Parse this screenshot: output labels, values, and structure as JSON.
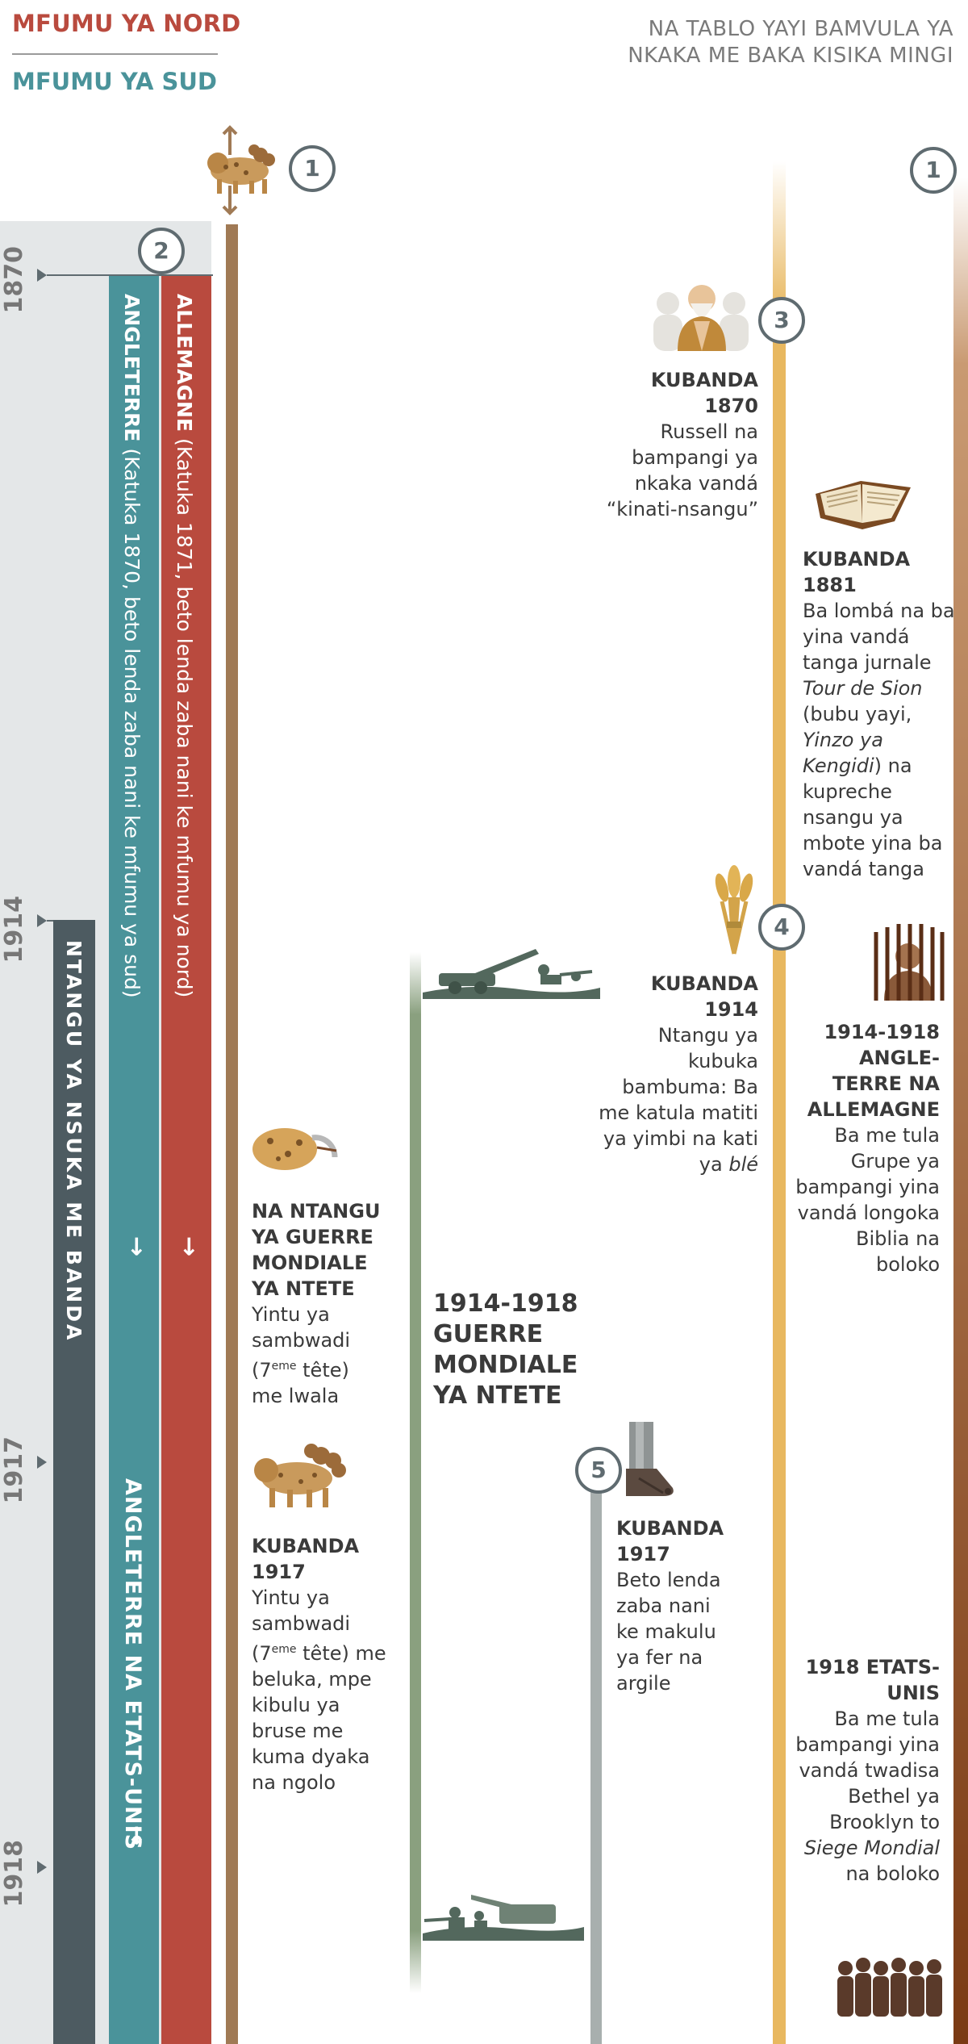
{
  "header": {
    "north_title": "MFUMU YA NORD",
    "south_title": "MFUMU YA SUD",
    "right_title": "NA TABLO YAYI BAMVULA YA NKAKA ME BAKA KISIKA MINGI"
  },
  "years": {
    "y1870": "1870",
    "y1914": "1914",
    "y1917": "1917",
    "y1918": "1918"
  },
  "markers": {
    "m1_left": "1",
    "m1_right": "1",
    "m2": "2",
    "m3": "3",
    "m4": "4",
    "m5": "5"
  },
  "bars": {
    "allemagne_bold": "ALLEMAGNE",
    "allemagne_rest": " (Katuka 1871, beto lenda zaba nani ke mfumu ya nord)",
    "allemagne_arrow": "→",
    "angleterre_bold": "ANGLETERRE",
    "angleterre_rest": " (Katuka 1870, beto lenda zaba nani ke mfumu ya sud)",
    "angleterre_arrow": "→",
    "ntangu": "NTANGU YA NSUKA ME BANDA",
    "angl_us": "ANGLETERRE NA ETATS-UNIS",
    "angl_us_arrow": "→"
  },
  "events": {
    "russell": {
      "title": "KUBANDA 1870",
      "body": "Russell na bampangi ya nkaka vandá “kinati-nsangu”"
    },
    "tour": {
      "title": "KUBANDA 1881",
      "body_1": "Ba lombá na ba yina vandá tanga jurnale ",
      "italic_1": "Tour de Sion",
      "body_2": " (bubu yayi, ",
      "italic_2": "Yinzo ya Kengidi",
      "body_3": ") na kupreche nsangu ya mbote yina ba vandá tanga"
    },
    "harvest": {
      "title": "KUBANDA 1914",
      "body": "Ntangu ya kubuka bambuma: Ba me katula matiti ya yimbi na kati ya ",
      "italic": "blé"
    },
    "prison": {
      "title": "1914-1918 ANGLE-TERRE NA ALLEMAGNE",
      "body": "Ba me tula Grupe ya bampangi yina vandá longoka Biblia na boloko"
    },
    "wound": {
      "title": "NA NTANGU YA GUERRE MONDIALE YA NTETE",
      "body_1": "Yintu ya sambwadi (7",
      "sup": "eme",
      "body_2": " tête) me lwala"
    },
    "beast1917": {
      "title": "KUBANDA 1917",
      "body_1": "Yintu ya sambwadi (7",
      "sup": "eme",
      "body_2": " tête) me beluka, mpe kibulu ya bruse me kuma dyaka na ngolo"
    },
    "feet": {
      "title": "KUBANDA 1917",
      "body": "Beto lenda zaba nani ke makulu ya fer na argile"
    },
    "usa": {
      "title": "1918 ETATS-UNIS",
      "body": "Ba me tula bampangi yina vandá twadisa Bethel ya Brooklyn to ",
      "italic": "Siege Mondial",
      "body_end": " na boloko"
    },
    "war": {
      "title": "1914-1918 GUERRE MONDIALE YA NTETE"
    }
  },
  "colors": {
    "north": "#b94a3e",
    "south": "#4a939a",
    "end_time": "#4d5b61",
    "beast_line": "#a07a55",
    "war_line": "#8aa07f",
    "feet_line": "#a8afae",
    "gold_line": "#e8b860",
    "brown_line": "#7a3a14"
  }
}
